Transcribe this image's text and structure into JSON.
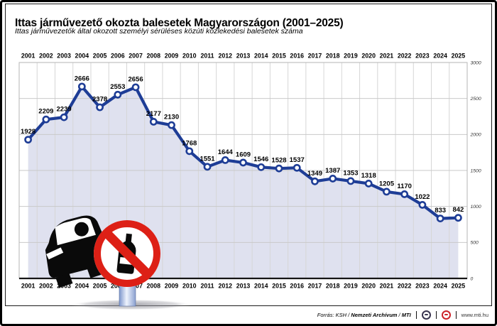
{
  "header": {
    "title": "Ittas járművezető okozta balesetek Magyarországon (2001–2025)",
    "subtitle": "Ittas járművezetők által okozott személyi sérüléses közúti közlekedési balesetek száma"
  },
  "chart_data": {
    "type": "line",
    "x": [
      2001,
      2002,
      2003,
      2004,
      2005,
      2006,
      2007,
      2008,
      2009,
      2010,
      2011,
      2012,
      2013,
      2014,
      2015,
      2016,
      2017,
      2018,
      2019,
      2020,
      2021,
      2022,
      2023,
      2024,
      2025
    ],
    "series": [
      {
        "name": "Ittas járművezető okozta balesetek",
        "values": [
          1928,
          2209,
          2239,
          2666,
          2378,
          2553,
          2656,
          2177,
          2130,
          1768,
          1551,
          1644,
          1609,
          1546,
          1528,
          1537,
          1349,
          1387,
          1353,
          1318,
          1205,
          1170,
          1022,
          833,
          842
        ]
      }
    ],
    "ylim": [
      0,
      3000
    ],
    "yticks": [
      0,
      500,
      1000,
      1500,
      2000,
      2500,
      3000
    ],
    "ytick_side": "right",
    "grid": true,
    "x_axis_labels": "top-and-bottom",
    "data_labels": true,
    "marker": "open-circle",
    "line_color": "#1e3d96",
    "area_color": "#dfe1ef",
    "grid_color": "#c9c9c9",
    "legend": "none"
  },
  "illustration": {
    "name": "car-with-no-alcohol-prohibition-sign",
    "sign_color": "#dd2016"
  },
  "footer": {
    "source_tokens": [
      {
        "text": "Forrás: ",
        "bold": false
      },
      {
        "text": "KSH",
        "bold": false
      },
      {
        "text": " / ",
        "bold": false
      },
      {
        "text": "Nemzeti Archívum",
        "bold": true
      },
      {
        "text": " / ",
        "bold": false
      },
      {
        "text": "MTI",
        "bold": true
      }
    ],
    "separator": "|",
    "logos": [
      {
        "name": "mti-logo-dark",
        "color": "#3a3550"
      },
      {
        "name": "mti-logo-red",
        "color": "#cc2229"
      }
    ],
    "website": "www.mti.hu"
  }
}
